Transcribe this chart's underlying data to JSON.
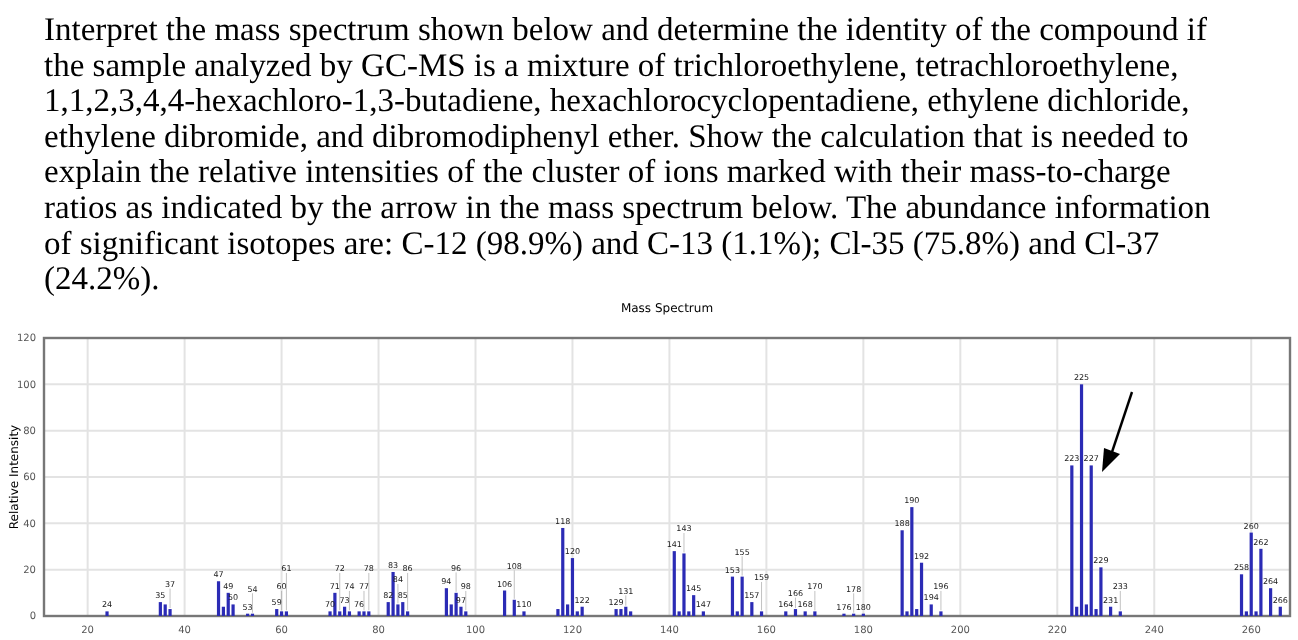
{
  "chart_data": {
    "type": "bar",
    "title": "Mass Spectrum",
    "ylabel": "Relative Intensity",
    "annotations": [
      "Interpret the mass spectrum shown below and determine the identity of the compound if the sample analyzed by GC-MS is a mixture of trichloroethylene, tetrachloroethylene, 1,1,2,3,4,4-hexachloro-1,3-butadiene, hexachlorocyclopentadiene, ethylene dichloride, ethylene dibromide, and dibromodiphenyl ether.  Show the calculation that is needed to explain the relative intensities of the cluster of ions marked with their mass-to-charge ratios as indicated by the arrow in the mass spectrum below.  The abundance information of significant isotopes are: C-12 (98.9%) and C-13 (1.1%); Cl-35 (75.8%) and Cl-37 (24.2%).",
      {
        "text": "24",
        "x": 24,
        "y": 2
      },
      {
        "text": "35",
        "x": 35,
        "y": 6
      },
      {
        "text": "37",
        "x": 37,
        "y": 3
      },
      {
        "text": "47",
        "x": 47,
        "y": 15
      },
      {
        "text": "49",
        "x": 49,
        "y": 10
      },
      {
        "text": "50",
        "x": 50,
        "y": 5
      },
      {
        "text": "53",
        "x": 53,
        "y": 1
      },
      {
        "text": "54",
        "x": 54,
        "y": 1
      },
      {
        "text": "59",
        "x": 59,
        "y": 3
      },
      {
        "text": "60",
        "x": 60,
        "y": 2
      },
      {
        "text": "61",
        "x": 61,
        "y": 2
      },
      {
        "text": "70",
        "x": 70,
        "y": 2
      },
      {
        "text": "71",
        "x": 71,
        "y": 10
      },
      {
        "text": "72",
        "x": 72,
        "y": 2
      },
      {
        "text": "73",
        "x": 73,
        "y": 4
      },
      {
        "text": "74",
        "x": 74,
        "y": 2
      },
      {
        "text": "76",
        "x": 76,
        "y": 2
      },
      {
        "text": "77",
        "x": 77,
        "y": 2
      },
      {
        "text": "78",
        "x": 78,
        "y": 2
      },
      {
        "text": "82",
        "x": 82,
        "y": 6
      },
      {
        "text": "83",
        "x": 83,
        "y": 19
      },
      {
        "text": "84",
        "x": 84,
        "y": 5
      },
      {
        "text": "85",
        "x": 85,
        "y": 6
      },
      {
        "text": "86",
        "x": 86,
        "y": 2
      },
      {
        "text": "94",
        "x": 94,
        "y": 12
      },
      {
        "text": "96",
        "x": 96,
        "y": 10
      },
      {
        "text": "97",
        "x": 97,
        "y": 4
      },
      {
        "text": "98",
        "x": 98,
        "y": 2
      },
      {
        "text": "106",
        "x": 106,
        "y": 11
      },
      {
        "text": "108",
        "x": 108,
        "y": 7
      },
      {
        "text": "110",
        "x": 110,
        "y": 2
      },
      {
        "text": "118",
        "x": 118,
        "y": 38
      },
      {
        "text": "120",
        "x": 120,
        "y": 25
      },
      {
        "text": "122",
        "x": 122,
        "y": 4
      },
      {
        "text": "129",
        "x": 129,
        "y": 3
      },
      {
        "text": "131",
        "x": 131,
        "y": 4
      },
      {
        "text": "141",
        "x": 141,
        "y": 28
      },
      {
        "text": "143",
        "x": 143,
        "y": 27
      },
      {
        "text": "145",
        "x": 145,
        "y": 9
      },
      {
        "text": "147",
        "x": 147,
        "y": 2
      },
      {
        "text": "153",
        "x": 153,
        "y": 17
      },
      {
        "text": "155",
        "x": 155,
        "y": 17
      },
      {
        "text": "157",
        "x": 157,
        "y": 6
      },
      {
        "text": "159",
        "x": 159,
        "y": 2
      },
      {
        "text": "164",
        "x": 164,
        "y": 2
      },
      {
        "text": "166",
        "x": 166,
        "y": 3
      },
      {
        "text": "168",
        "x": 168,
        "y": 2
      },
      {
        "text": "170",
        "x": 170,
        "y": 2
      },
      {
        "text": "176",
        "x": 176,
        "y": 1
      },
      {
        "text": "178",
        "x": 178,
        "y": 1
      },
      {
        "text": "180",
        "x": 180,
        "y": 1
      },
      {
        "text": "188",
        "x": 188,
        "y": 37
      },
      {
        "text": "190",
        "x": 190,
        "y": 47
      },
      {
        "text": "192",
        "x": 192,
        "y": 23
      },
      {
        "text": "194",
        "x": 194,
        "y": 5
      },
      {
        "text": "196",
        "x": 196,
        "y": 2
      },
      {
        "text": "223",
        "x": 223,
        "y": 65
      },
      {
        "text": "225",
        "x": 225,
        "y": 100
      },
      {
        "text": "227",
        "x": 227,
        "y": 65
      },
      {
        "text": "229",
        "x": 229,
        "y": 21
      },
      {
        "text": "231",
        "x": 231,
        "y": 4
      },
      {
        "text": "233",
        "x": 233,
        "y": 2
      },
      {
        "text": "258",
        "x": 258,
        "y": 18
      },
      {
        "text": "260",
        "x": 260,
        "y": 36
      },
      {
        "text": "262",
        "x": 262,
        "y": 29
      },
      {
        "text": "264",
        "x": 264,
        "y": 12
      },
      {
        "text": "266",
        "x": 266,
        "y": 4
      }
    ],
    "x": [
      24,
      35,
      36,
      37,
      47,
      48,
      49,
      50,
      53,
      54,
      59,
      60,
      61,
      70,
      71,
      72,
      73,
      74,
      76,
      77,
      78,
      82,
      83,
      84,
      85,
      86,
      94,
      95,
      96,
      97,
      98,
      106,
      108,
      110,
      117,
      118,
      119,
      120,
      121,
      122,
      129,
      130,
      131,
      132,
      141,
      142,
      143,
      144,
      145,
      147,
      153,
      154,
      155,
      157,
      159,
      164,
      166,
      168,
      170,
      176,
      178,
      180,
      188,
      189,
      190,
      191,
      192,
      194,
      196,
      223,
      224,
      225,
      226,
      227,
      228,
      229,
      231,
      233,
      258,
      259,
      260,
      261,
      262,
      264,
      266
    ],
    "values": [
      2,
      6,
      5,
      3,
      15,
      4,
      10,
      5,
      1,
      1,
      3,
      2,
      2,
      2,
      10,
      2,
      4,
      2,
      2,
      2,
      2,
      6,
      19,
      5,
      6,
      2,
      12,
      5,
      10,
      4,
      2,
      11,
      7,
      2,
      3,
      38,
      5,
      25,
      2,
      4,
      3,
      3,
      4,
      2,
      28,
      2,
      27,
      2,
      9,
      2,
      17,
      2,
      17,
      6,
      2,
      2,
      3,
      2,
      2,
      1,
      1,
      1,
      37,
      2,
      47,
      3,
      23,
      5,
      2,
      65,
      4,
      100,
      5,
      65,
      3,
      21,
      4,
      2,
      18,
      2,
      36,
      2,
      29,
      12,
      4
    ],
    "color": "#2b2bb5",
    "xlim": [
      11,
      268
    ],
    "xticks": [
      20,
      40,
      60,
      80,
      100,
      120,
      140,
      160,
      180,
      200,
      220,
      240,
      260
    ],
    "ylim": [
      0,
      120
    ],
    "yticks": [
      0,
      20,
      40,
      60,
      80,
      100,
      120
    ],
    "grid": true
  }
}
